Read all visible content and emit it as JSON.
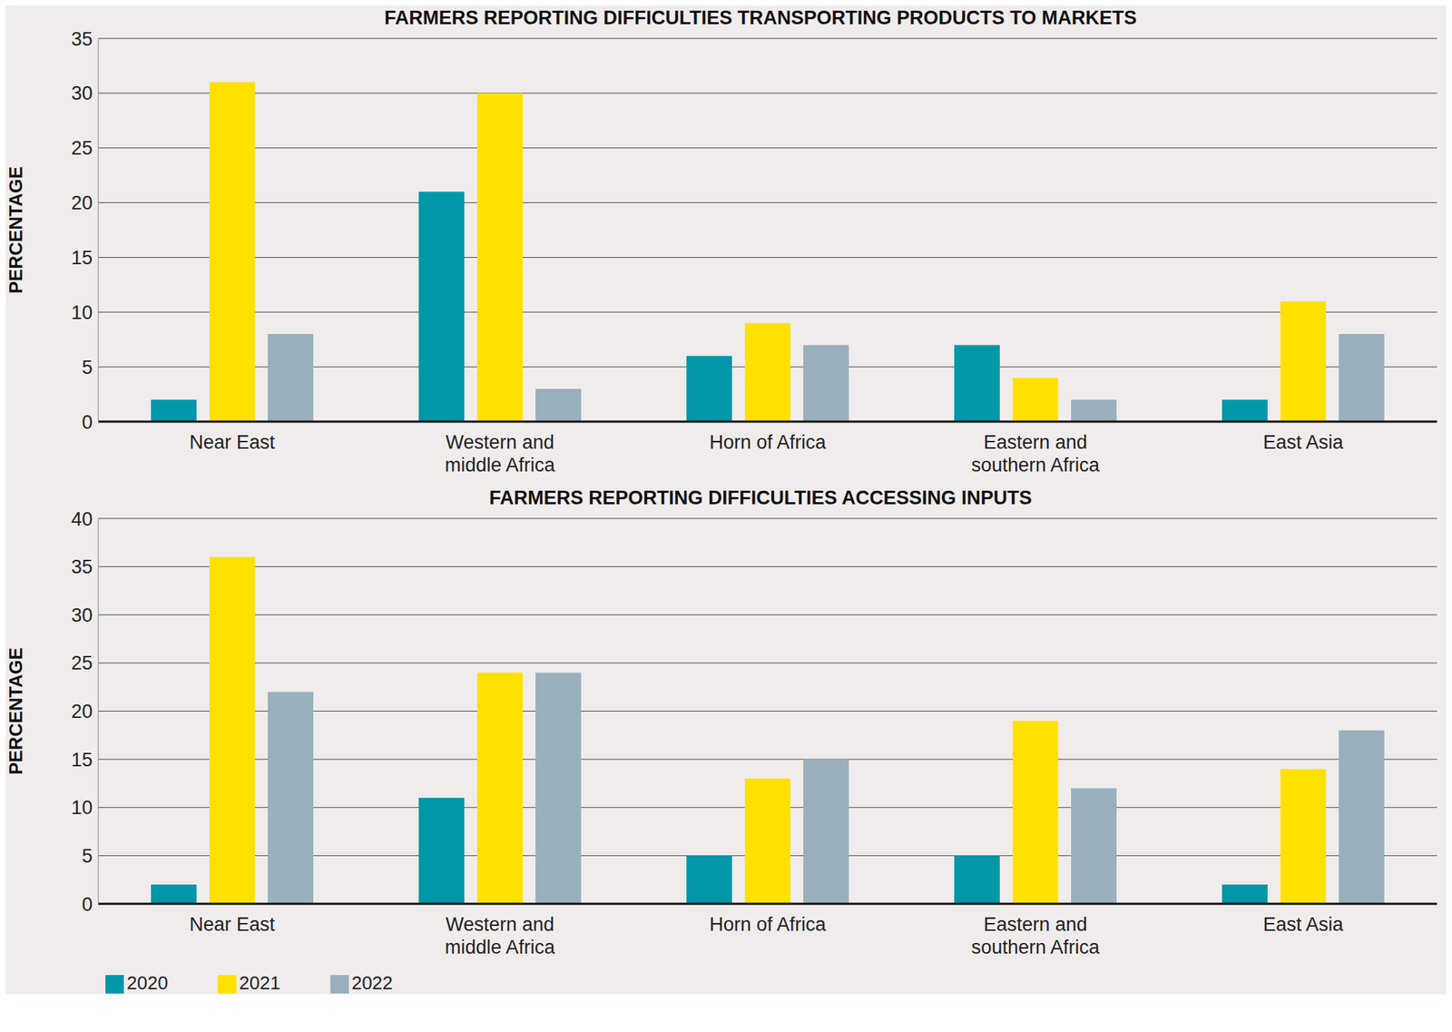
{
  "chart_data": [
    {
      "type": "bar",
      "title": "FARMERS REPORTING DIFFICULTIES TRANSPORTING PRODUCTS TO MARKETS",
      "y_label": "PERCENTAGE",
      "categories": [
        "Near East",
        "Western and middle Africa",
        "Horn of Africa",
        "Eastern and southern Africa",
        "East Asia"
      ],
      "series": [
        {
          "name": "2020",
          "color": "#0097a9",
          "values": [
            2,
            21,
            6,
            7,
            2
          ]
        },
        {
          "name": "2021",
          "color": "#ffe100",
          "values": [
            31,
            30,
            9,
            4,
            11
          ]
        },
        {
          "name": "2022",
          "color": "#9aafbc",
          "values": [
            8,
            3,
            7,
            2,
            8
          ]
        }
      ],
      "ylim": [
        0,
        35
      ],
      "yticks": [
        0,
        5,
        10,
        15,
        20,
        25,
        30,
        35
      ],
      "grid": true
    },
    {
      "type": "bar",
      "title": "FARMERS REPORTING DIFFICULTIES ACCESSING INPUTS",
      "y_label": "PERCENTAGE",
      "categories": [
        "Near East",
        "Western and middle Africa",
        "Horn of Africa",
        "Eastern and southern Africa",
        "East Asia"
      ],
      "series": [
        {
          "name": "2020",
          "color": "#0097a9",
          "values": [
            2,
            11,
            5,
            5,
            2
          ]
        },
        {
          "name": "2021",
          "color": "#ffe100",
          "values": [
            36,
            24,
            13,
            19,
            14
          ]
        },
        {
          "name": "2022",
          "color": "#9aafbc",
          "values": [
            22,
            24,
            15,
            12,
            18
          ]
        }
      ],
      "ylim": [
        0,
        40
      ],
      "yticks": [
        0,
        5,
        10,
        15,
        20,
        25,
        30,
        35,
        40
      ],
      "grid": true,
      "legend": "lower left"
    }
  ]
}
